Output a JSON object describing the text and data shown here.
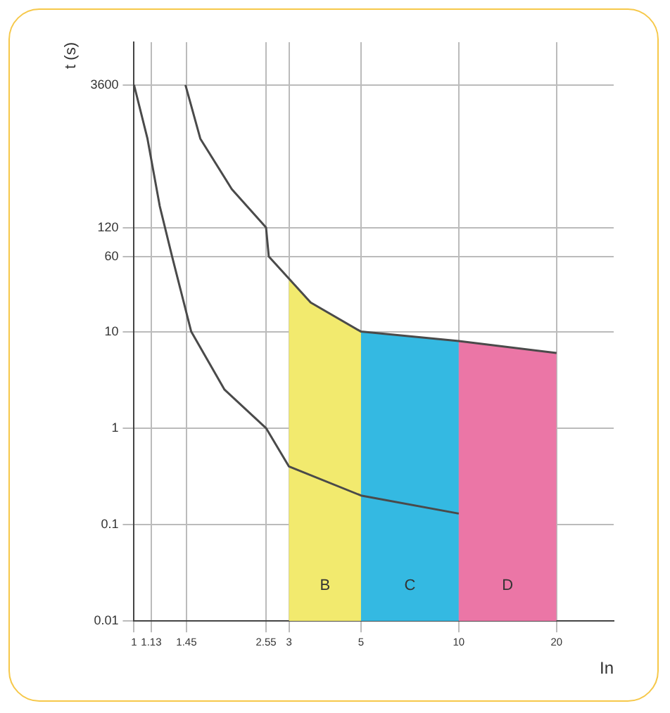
{
  "chart_data": {
    "type": "line",
    "xlabel": "In",
    "ylabel": "t (s)",
    "series": [
      {
        "color": "#4a4a4a",
        "x": [
          1,
          1.1,
          1.2,
          1.31,
          1.5,
          1.9,
          2.55,
          3,
          5,
          10
        ],
        "values": [
          3600,
          1000,
          200,
          60,
          10,
          2.5,
          1,
          0.4,
          0.2,
          0.13
        ]
      },
      {
        "color": "#4a4a4a",
        "x": [
          1.44,
          1.6,
          2.0,
          2.55,
          2.6,
          3.5,
          5,
          10,
          20
        ],
        "values": [
          3600,
          1000,
          300,
          120,
          60,
          20,
          10,
          8,
          6
        ]
      }
    ],
    "bands": [
      {
        "axis": "x",
        "from": 3,
        "to": 5,
        "label": "B",
        "color": "#f2ea6e"
      },
      {
        "axis": "x",
        "from": 5,
        "to": 10,
        "label": "C",
        "color": "#34b9e2"
      },
      {
        "axis": "x",
        "from": 10,
        "to": 20,
        "label": "D",
        "color": "#eb76a6"
      }
    ],
    "xlim": [
      1,
      30
    ],
    "xticks": [
      1,
      1.13,
      1.45,
      2.55,
      3,
      5,
      10,
      20
    ],
    "ylim": [
      0.01,
      10000
    ],
    "yticks": [
      0.01,
      0.1,
      1,
      10,
      60,
      120,
      3600
    ],
    "log": "xy",
    "grid": true,
    "legend": false,
    "marker": "none",
    "line_style": "solid"
  }
}
